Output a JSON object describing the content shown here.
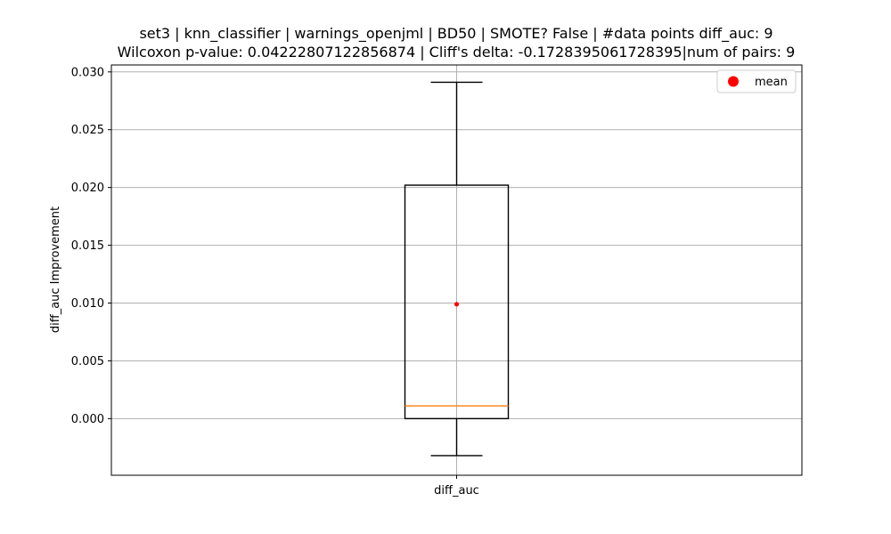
{
  "chart_data": {
    "type": "box",
    "title_line1": "set3 | knn_classifier | warnings_openjml | BD50 | SMOTE? False | #data points diff_auc: 9",
    "title_line2": "Wilcoxon p-value: 0.04222807122856874 | Cliff's delta: -0.1728395061728395|num of pairs: 9",
    "ylabel": "diff_auc Improvement",
    "categories": [
      "diff_auc"
    ],
    "ylim": [
      -0.0049,
      0.0306
    ],
    "yticks": [
      0.0,
      0.005,
      0.01,
      0.015,
      0.02,
      0.025,
      0.03
    ],
    "ytick_labels": [
      "0.000",
      "0.005",
      "0.010",
      "0.015",
      "0.020",
      "0.025",
      "0.030"
    ],
    "grid": true,
    "legend": {
      "position": "top-right",
      "entries": [
        {
          "label": "mean",
          "color": "#ff0000"
        }
      ]
    },
    "boxes": [
      {
        "name": "diff_auc",
        "whisker_low": -0.0032,
        "q1": 0.0,
        "median": 0.0011,
        "q3": 0.0202,
        "whisker_high": 0.0291,
        "mean": 0.0099
      }
    ],
    "colors": {
      "box": "#000000",
      "median": "#ff7f0e",
      "mean": "#ff0000",
      "grid": "#b0b0b0"
    }
  }
}
